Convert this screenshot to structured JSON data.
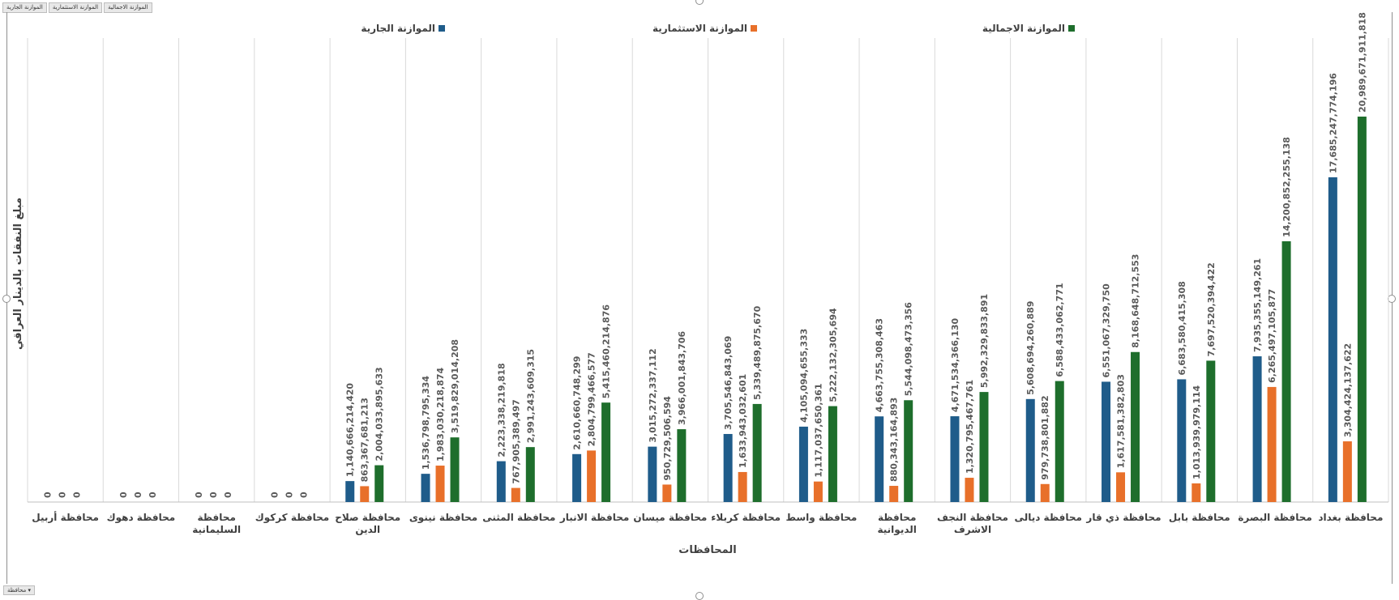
{
  "field_buttons": [
    "الموازنة الجارية",
    "الموازنة الاستثمارية",
    "الموازنة الاجمالية"
  ],
  "axis_field_button": "محافظة",
  "chart_data": {
    "type": "bar",
    "title": "",
    "xlabel": "المحافظات",
    "ylabel": "مبلغ النفقات بالدينار العراقي",
    "ylim": [
      0,
      24000000000000
    ],
    "grid": true,
    "legend": "top",
    "categories": [
      "محافظة أربيل",
      "محافظة دهوك",
      "محافظة السليمانية",
      "محافظة كركوك",
      "محافظة صلاح الدين",
      "محافظة نينوى",
      "محافظة المثنى",
      "محافظة الانبار",
      "محافظة ميسان",
      "محافظة كربلاء",
      "محافظة واسط",
      "محافظة الديوانية",
      "محافظة النجف الاشرف",
      "محافظة ديالى",
      "محافظة ذي قار",
      "محافظة بابل",
      "محافظة البصرة",
      "محافظة بغداد"
    ],
    "category_lines": [
      [
        "محافظة أربيل"
      ],
      [
        "محافظة دهوك"
      ],
      [
        "محافظة",
        "السليمانية"
      ],
      [
        "محافظة كركوك"
      ],
      [
        "محافظة صلاح",
        "الدين"
      ],
      [
        "محافظة نينوى"
      ],
      [
        "محافظة المثنى"
      ],
      [
        "محافظة الانبار"
      ],
      [
        "محافظة ميسان"
      ],
      [
        "محافظة كربلاء"
      ],
      [
        "محافظة واسط"
      ],
      [
        "محافظة",
        "الديوانية"
      ],
      [
        "محافظة النجف",
        "الاشرف"
      ],
      [
        "محافظة ديالى"
      ],
      [
        "محافظة ذي قار"
      ],
      [
        "محافظة بابل"
      ],
      [
        "محافظة البصرة"
      ],
      [
        "محافظة بغداد"
      ]
    ],
    "series": [
      {
        "name": "الموازنة الجارية",
        "color": "#1f5c8a",
        "values": [
          0,
          0,
          0,
          0,
          1140666214420,
          1536798795334,
          2223338219818,
          2610660748299,
          3015272337112,
          3705546843069,
          4105094655333,
          4663755308463,
          4671534366130,
          5608694260889,
          6551067329750,
          6683580415308,
          7935355149261,
          17685247774196
        ],
        "labels": [
          "0",
          "0",
          "0",
          "0",
          "1,140,666,214,420",
          "1,536,798,795,334",
          "2,223,338,219,818",
          "2,610,660,748,299",
          "3,015,272,337,112",
          "3,705,546,843,069",
          "4,105,094,655,333",
          "4,663,755,308,463",
          "4,671,534,366,130",
          "5,608,694,260,889",
          "6,551,067,329,750",
          "6,683,580,415,308",
          "7,935,355,149,261",
          "17,685,247,774,196"
        ]
      },
      {
        "name": "الموازنة الاستثمارية",
        "color": "#e8702a",
        "values": [
          0,
          0,
          0,
          0,
          863367681213,
          1983030218874,
          767905389497,
          2804799466577,
          950729506594,
          1633943032601,
          1117037650361,
          880343164893,
          1320795467761,
          979738801882,
          1617581382803,
          1013939979114,
          6265497105877,
          3304424137622
        ],
        "labels": [
          "0",
          "0",
          "0",
          "0",
          "863,367,681,213",
          "1,983,030,218,874",
          "767,905,389,497",
          "2,804,799,466,577",
          "950,729,506,594",
          "1,633,943,032,601",
          "1,117,037,650,361",
          "880,343,164,893",
          "1,320,795,467,761",
          "979,738,801,882",
          "1,617,581,382,803",
          "1,013,939,979,114",
          "6,265,497,105,877",
          "3,304,424,137,622"
        ]
      },
      {
        "name": "الموازنة الاجمالية",
        "color": "#1e6e2c",
        "values": [
          0,
          0,
          0,
          0,
          2004033895633,
          3519829014208,
          2991243609315,
          5415460214876,
          3966001843706,
          5339489875670,
          5222132305694,
          5544098473356,
          5992329833891,
          6588433062771,
          8168648712553,
          7697520394422,
          14200852255138,
          20989671911818
        ],
        "labels": [
          "0",
          "0",
          "0",
          "0",
          "2,004,033,895,633",
          "3,519,829,014,208",
          "2,991,243,609,315",
          "5,415,460,214,876",
          "3,966,001,843,706",
          "5,339,489,875,670",
          "5,222,132,305,694",
          "5,544,098,473,356",
          "5,992,329,833,891",
          "6,588,433,062,771",
          "8,168,648,712,553",
          "7,697,520,394,422",
          "14,200,852,255,138",
          "20,989,671,911,818"
        ]
      }
    ]
  }
}
